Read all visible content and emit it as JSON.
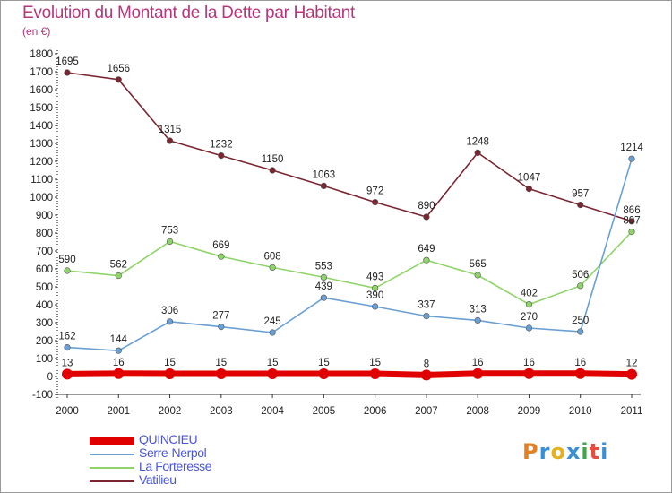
{
  "header": {
    "title": "Evolution du Montant de la Dette par Habitant",
    "subtitle": "(en €)"
  },
  "chart_data": {
    "type": "line",
    "title": "Evolution du Montant de la Dette par Habitant",
    "ylabel": "(en €)",
    "xlabel": "",
    "categories": [
      "2000",
      "2001",
      "2002",
      "2003",
      "2004",
      "2005",
      "2006",
      "2007",
      "2008",
      "2009",
      "2010",
      "2011"
    ],
    "ylim": [
      -100,
      1800
    ],
    "yticks": [
      -100,
      0,
      100,
      200,
      300,
      400,
      500,
      600,
      700,
      800,
      900,
      1000,
      1100,
      1200,
      1300,
      1400,
      1500,
      1600,
      1700,
      1800
    ],
    "grid": false,
    "legend_position": "bottom-left",
    "series": [
      {
        "name": "QUINCIEU",
        "color": "#e00000",
        "values": [
          13,
          16,
          15,
          15,
          15,
          15,
          15,
          8,
          16,
          16,
          16,
          12
        ],
        "labels": [
          "13",
          "16",
          "15",
          "15",
          "15",
          "15",
          "15",
          "8",
          "16",
          "16",
          "16",
          "12"
        ]
      },
      {
        "name": "Serre-Nerpol",
        "color": "#6a9fd4",
        "values": [
          162,
          144,
          306,
          277,
          245,
          439,
          390,
          337,
          313,
          270,
          250,
          1214
        ],
        "labels": [
          "162",
          "144",
          "306",
          "277",
          "245",
          "439",
          "390",
          "337",
          "313",
          "270",
          "250",
          "1214"
        ]
      },
      {
        "name": "La Forteresse",
        "color": "#8fd46a",
        "values": [
          590,
          562,
          753,
          669,
          608,
          553,
          493,
          649,
          565,
          402,
          506,
          807
        ],
        "labels": [
          "590",
          "562",
          "753",
          "669",
          "608",
          "553",
          "493",
          "649",
          "565",
          "402",
          "506",
          "807"
        ]
      },
      {
        "name": "Vatilieu",
        "color": "#7a2530",
        "values": [
          1695,
          1656,
          1315,
          1232,
          1150,
          1063,
          972,
          890,
          1248,
          1047,
          957,
          866
        ],
        "labels": [
          "1695",
          "1656",
          "1315",
          "1232",
          "1150",
          "1063",
          "972",
          "890",
          "1248",
          "1047",
          "957",
          "866"
        ]
      }
    ]
  },
  "legend": {
    "items": [
      {
        "label": "QUINCIEU",
        "color": "#e00000"
      },
      {
        "label": "Serre-Nerpol",
        "color": "#6a9fd4"
      },
      {
        "label": "La Forteresse",
        "color": "#8fd46a"
      },
      {
        "label": "Vatilieu",
        "color": "#7a2530"
      }
    ]
  },
  "branding": {
    "logo_text": "Proxiti",
    "logo_colors": [
      "#e67e22",
      "#3a8fd9",
      "#e5b21f",
      "#3a8fd9",
      "#3fa64a",
      "#e74c3c",
      "#3a8fd9"
    ]
  }
}
